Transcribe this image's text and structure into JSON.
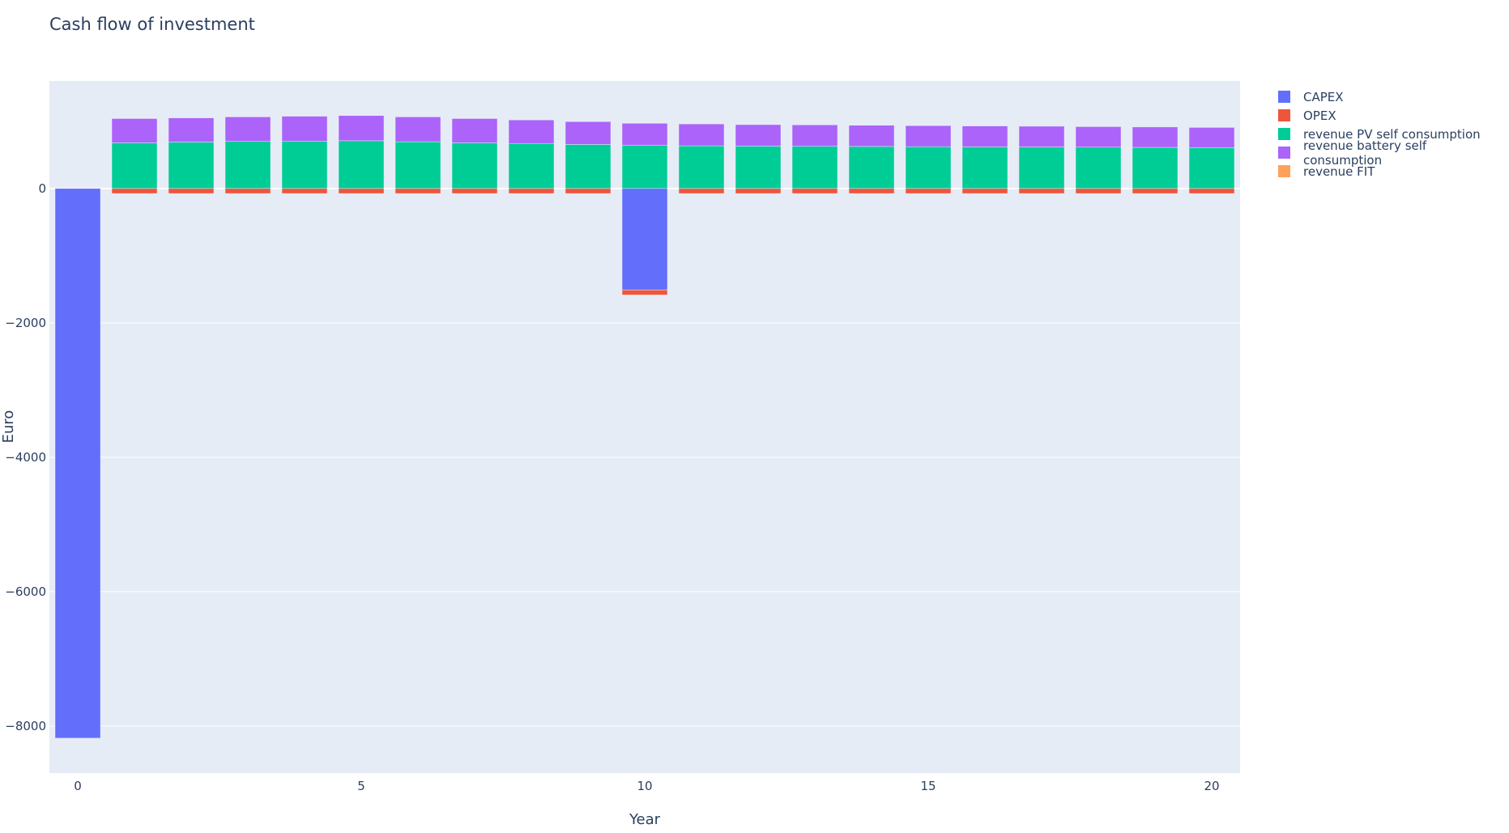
{
  "chart_data": {
    "type": "bar",
    "barmode": "relative",
    "title": "Cash flow of investment",
    "xlabel": "Year",
    "ylabel": "Euro",
    "x": [
      0,
      1,
      2,
      3,
      4,
      5,
      6,
      7,
      8,
      9,
      10,
      11,
      12,
      13,
      14,
      15,
      16,
      17,
      18,
      19,
      20
    ],
    "xlim": [
      -0.5,
      20.5
    ],
    "ylim": [
      -8700,
      1600
    ],
    "x_ticks": [
      0,
      5,
      10,
      15,
      20
    ],
    "y_ticks": [
      0,
      -2000,
      -4000,
      -6000,
      -8000
    ],
    "x_tick_labels": [
      "0",
      "5",
      "10",
      "15",
      "20"
    ],
    "y_tick_labels": [
      "0",
      "−2000",
      "−4000",
      "−6000",
      "−8000"
    ],
    "grid": true,
    "legend_position": "top-right, outside plot",
    "series": [
      {
        "name": "CAPEX",
        "color": "#636efa",
        "values": [
          -8180,
          0,
          0,
          0,
          0,
          0,
          0,
          0,
          0,
          0,
          -1510,
          0,
          0,
          0,
          0,
          0,
          0,
          0,
          0,
          0,
          0
        ]
      },
      {
        "name": "OPEX",
        "color": "#ef553b",
        "values": [
          0,
          -75,
          -75,
          -75,
          -75,
          -75,
          -75,
          -75,
          -75,
          -75,
          -75,
          -75,
          -75,
          -75,
          -75,
          -75,
          -75,
          -75,
          -75,
          -75,
          -75
        ]
      },
      {
        "name": "revenue PV self consumption",
        "color": "#00cc96",
        "values": [
          0,
          680,
          690,
          700,
          705,
          710,
          695,
          680,
          670,
          655,
          640,
          635,
          630,
          628,
          625,
          622,
          620,
          618,
          615,
          612,
          608
        ]
      },
      {
        "name": "revenue battery self consumption",
        "color": "#ab63fa",
        "values": [
          0,
          360,
          360,
          365,
          370,
          375,
          370,
          360,
          350,
          340,
          330,
          325,
          320,
          318,
          315,
          313,
          310,
          308,
          305,
          303,
          300
        ]
      },
      {
        "name": "revenue FIT",
        "color": "#ffa15a",
        "values": [
          0,
          0,
          0,
          0,
          0,
          0,
          0,
          0,
          0,
          0,
          0,
          0,
          0,
          0,
          0,
          0,
          0,
          0,
          0,
          0,
          0
        ]
      }
    ]
  }
}
